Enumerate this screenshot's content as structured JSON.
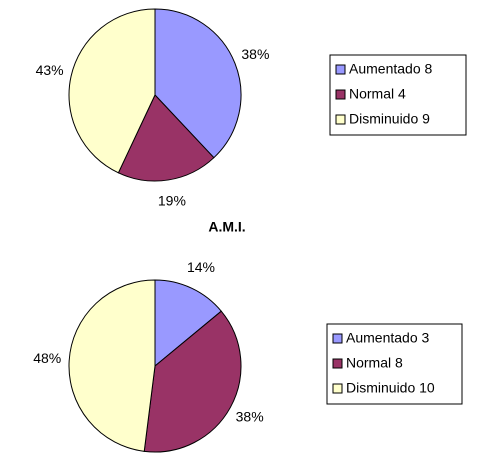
{
  "chart_data": [
    {
      "type": "pie",
      "categories": [
        "Aumentado 8",
        "Normal 4",
        "Disminuido 9"
      ],
      "values": [
        38,
        19,
        43
      ],
      "value_labels": [
        "38%",
        "19%",
        "43%"
      ],
      "colors": [
        "#9999ff",
        "#993366",
        "#ffffcc"
      ]
    },
    {
      "type": "pie",
      "title": "A.M.I.",
      "categories": [
        "Aumentado 3",
        "Normal 8",
        "Disminuido 10"
      ],
      "values": [
        14,
        38,
        48
      ],
      "value_labels": [
        "14%",
        "38%",
        "48%"
      ],
      "colors": [
        "#9999ff",
        "#993366",
        "#ffffcc"
      ]
    }
  ]
}
